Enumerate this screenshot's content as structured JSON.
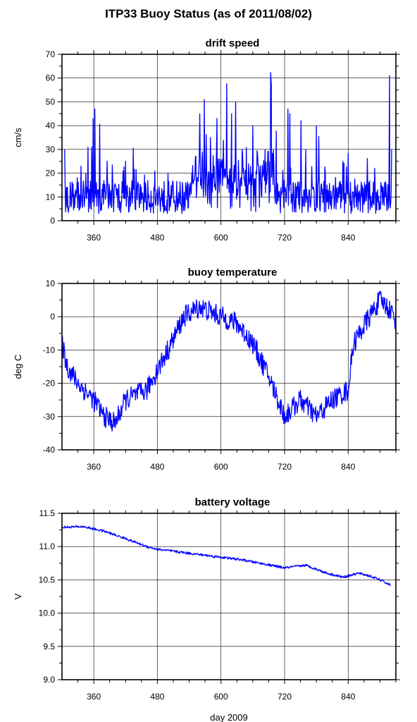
{
  "title": "ITP33 Buoy Status (as of 2011/08/02)",
  "xlabel": "day 2009",
  "colors": {
    "series": "#0000ff",
    "grid": "#000000",
    "frame": "#000000"
  },
  "chart_data": [
    {
      "type": "line",
      "title": "drift speed",
      "ylabel": "cm/s",
      "xlim": [
        300,
        930
      ],
      "ylim": [
        0,
        70
      ],
      "xticks": [
        360,
        480,
        600,
        720,
        840
      ],
      "yticks": [
        0,
        10,
        20,
        30,
        40,
        50,
        60,
        70
      ],
      "grid": true,
      "series": [
        {
          "values_approx": "noisy 0-25 cm/s with spikes",
          "x": [
            305,
            320,
            345,
            362,
            380,
            420,
            460,
            500,
            530,
            545,
            560,
            580,
            600,
            620,
            640,
            660,
            680,
            695,
            710,
            730,
            760,
            780,
            800,
            830,
            860,
            890,
            910,
            918,
            922
          ],
          "y": [
            30,
            10,
            20,
            47,
            12,
            25,
            8,
            20,
            8,
            20,
            45,
            35,
            25,
            45,
            30,
            40,
            20,
            57,
            10,
            45,
            30,
            40,
            15,
            25,
            8,
            22,
            10,
            61,
            30
          ]
        }
      ]
    },
    {
      "type": "line",
      "title": "buoy temperature",
      "ylabel": "deg C",
      "xlim": [
        300,
        930
      ],
      "ylim": [
        -40,
        10
      ],
      "xticks": [
        360,
        480,
        600,
        720,
        840
      ],
      "yticks": [
        -40,
        -30,
        -20,
        -10,
        0,
        10
      ],
      "grid": true,
      "series": [
        {
          "x": [
            300,
            310,
            330,
            360,
            380,
            400,
            420,
            460,
            500,
            530,
            560,
            600,
            630,
            660,
            690,
            720,
            750,
            780,
            810,
            840,
            850,
            880,
            900,
            920,
            930
          ],
          "y": [
            -8,
            -15,
            -20,
            -25,
            -30,
            -32,
            -25,
            -22,
            -10,
            0,
            3,
            0,
            -2,
            -8,
            -18,
            -30,
            -25,
            -30,
            -25,
            -22,
            -8,
            0,
            5,
            2,
            -1
          ]
        }
      ]
    },
    {
      "type": "line",
      "title": "battery voltage",
      "ylabel": "V",
      "xlim": [
        300,
        930
      ],
      "ylim": [
        9.0,
        11.5
      ],
      "xticks": [
        360,
        480,
        600,
        720,
        840
      ],
      "yticks": [
        "9.0",
        "9.5",
        "10.0",
        "10.5",
        "11.0",
        "11.5"
      ],
      "grid": true,
      "series": [
        {
          "x": [
            300,
            340,
            380,
            420,
            460,
            480,
            520,
            560,
            600,
            640,
            680,
            720,
            760,
            800,
            830,
            860,
            880,
            900,
            920
          ],
          "y": [
            11.29,
            11.3,
            11.23,
            11.12,
            11.0,
            10.96,
            10.92,
            10.88,
            10.84,
            10.8,
            10.74,
            10.68,
            10.72,
            10.6,
            10.54,
            10.6,
            10.56,
            10.5,
            10.42
          ]
        }
      ]
    }
  ]
}
